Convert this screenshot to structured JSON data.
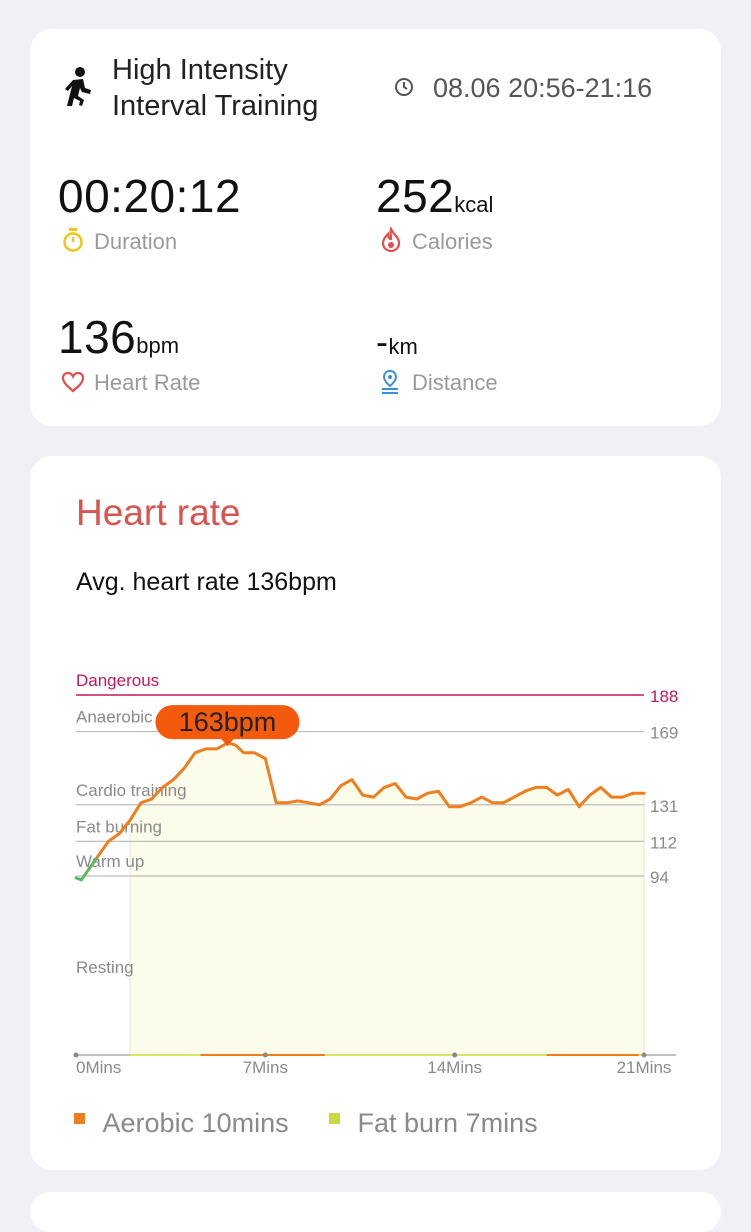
{
  "workout": {
    "title_line1": "High Intensity",
    "title_line2": "Interval Training",
    "time_range": "08.06 20:56-21:16"
  },
  "stats": {
    "duration": {
      "value": "00:20:12",
      "label": "Duration"
    },
    "calories": {
      "value": "252",
      "unit": "kcal",
      "label": "Calories"
    },
    "heart_rate": {
      "value": "136",
      "unit": "bpm",
      "label": "Heart Rate"
    },
    "distance": {
      "value": "-",
      "unit": "km",
      "label": "Distance"
    }
  },
  "hr_section": {
    "title": "Heart rate",
    "avg_text": "Avg. heart rate 136bpm",
    "peak_label": "163bpm"
  },
  "legend": [
    {
      "label": "Aerobic 10mins",
      "color": "#f07d1e"
    },
    {
      "label": "Fat burn 7mins",
      "color": "#c7dc3c"
    }
  ],
  "colors": {
    "danger": "#c2185b",
    "line": "#f07d1e",
    "warm": "#5cb85c",
    "title_red": "#d9534f",
    "fill": "#fbfce9"
  },
  "chart_data": {
    "type": "line",
    "title": "",
    "xlabel": "",
    "ylabel": "",
    "x_ticks": [
      "0Mins",
      "7Mins",
      "14Mins",
      "21Mins"
    ],
    "x_tick_values": [
      0,
      7,
      14,
      21
    ],
    "xlim": [
      0,
      21
    ],
    "ylim": [
      45,
      188
    ],
    "zones": [
      {
        "name": "Dangerous",
        "bpm": 188
      },
      {
        "name": "Anaerobic",
        "bpm": 169
      },
      {
        "name": "Cardio training",
        "bpm": 131
      },
      {
        "name": "Fat burning",
        "bpm": 112
      },
      {
        "name": "Warm up",
        "bpm": 94
      },
      {
        "name": "Resting"
      }
    ],
    "series": [
      {
        "x": [
          0.0,
          0.2,
          0.5,
          0.8,
          1.2,
          1.6,
          2.0,
          2.4,
          2.8,
          3.2,
          3.6,
          4.0,
          4.4,
          4.8,
          5.2,
          5.6,
          5.9,
          6.2,
          6.6,
          7.0,
          7.4,
          7.8,
          8.2,
          8.6,
          9.0,
          9.4,
          9.8,
          10.2,
          10.6,
          11.0,
          11.4,
          11.8,
          12.2,
          12.6,
          13.0,
          13.4,
          13.8,
          14.2,
          14.6,
          15.0,
          15.4,
          15.8,
          16.2,
          16.6,
          17.0,
          17.4,
          17.8,
          18.2,
          18.6,
          19.0,
          19.4,
          19.8,
          20.2,
          20.6,
          20.8,
          21.0
        ],
        "y": [
          93,
          92,
          98,
          104,
          112,
          116,
          123,
          132,
          134,
          140,
          144,
          150,
          158,
          160,
          160,
          163,
          162,
          158,
          158,
          155,
          132,
          132,
          133,
          132,
          131,
          134,
          141,
          144,
          136,
          135,
          140,
          142,
          135,
          134,
          137,
          138,
          130,
          130,
          132,
          135,
          132,
          132,
          135,
          138,
          140,
          140,
          136,
          139,
          130,
          136,
          140,
          135,
          135,
          137,
          137,
          137
        ]
      }
    ]
  }
}
